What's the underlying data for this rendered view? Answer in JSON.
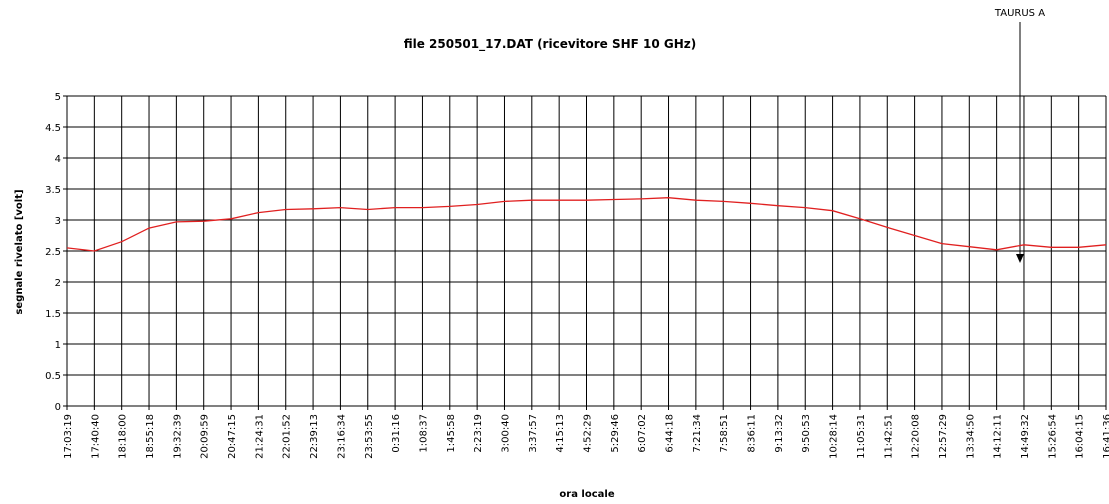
{
  "chart_data": {
    "type": "line",
    "title": "file 250501_17.DAT (ricevitore SHF 10 GHz)",
    "xlabel": "ora locale",
    "ylabel": "segnale rivelato [volt]",
    "annotation": "TAURUS A",
    "categories": [
      "17:03:19",
      "17:40:40",
      "18:18:00",
      "18:55:18",
      "19:32:39",
      "20:09:59",
      "20:47:15",
      "21:24:31",
      "22:01:52",
      "22:39:13",
      "23:16:34",
      "23:53:55",
      "0:31:16",
      "1:08:37",
      "1:45:58",
      "2:23:19",
      "3:00:40",
      "3:37:57",
      "4:15:13",
      "4:52:29",
      "5:29:46",
      "6:07:02",
      "6:44:18",
      "7:21:34",
      "7:58:51",
      "8:36:11",
      "9:13:32",
      "9:50:53",
      "10:28:14",
      "11:05:31",
      "11:42:51",
      "12:20:08",
      "12:57:29",
      "13:34:50",
      "14:12:11",
      "14:49:32",
      "15:26:54",
      "16:04:15",
      "16:41:36"
    ],
    "series": [
      {
        "name": "segnale",
        "color": "#e02020",
        "values": [
          2.55,
          2.5,
          2.65,
          2.87,
          2.97,
          2.98,
          3.02,
          3.12,
          3.17,
          3.18,
          3.2,
          3.17,
          3.2,
          3.2,
          3.22,
          3.25,
          3.3,
          3.32,
          3.32,
          3.32,
          3.33,
          3.34,
          3.36,
          3.32,
          3.3,
          3.27,
          3.23,
          3.2,
          3.15,
          3.02,
          2.88,
          2.75,
          2.62,
          2.57,
          2.52,
          2.6,
          2.56,
          2.56,
          2.6
        ]
      }
    ],
    "ylim": [
      0,
      5
    ],
    "yticks": [
      0,
      0.5,
      1,
      1.5,
      2,
      2.5,
      3,
      3.5,
      4,
      4.5,
      5
    ],
    "grid": true
  }
}
